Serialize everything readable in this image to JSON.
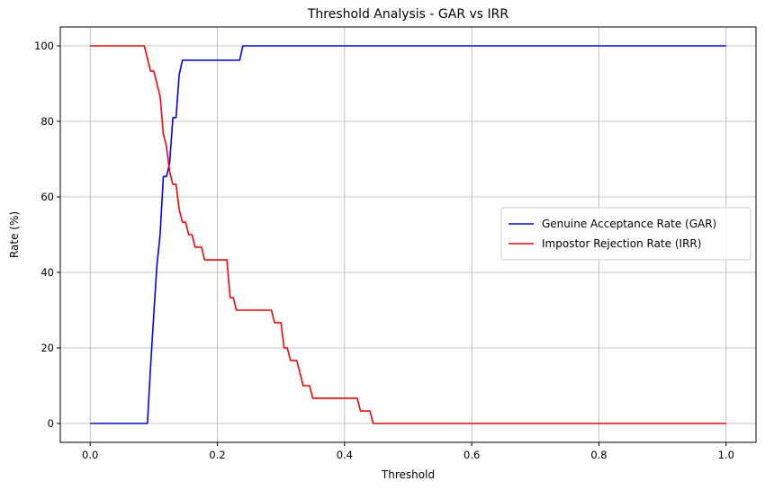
{
  "chart_data": {
    "type": "line",
    "title": "Threshold Analysis - GAR vs IRR",
    "xlabel": "Threshold",
    "ylabel": "Rate (%)",
    "xlim": [
      -0.047,
      1.047
    ],
    "ylim": [
      -5,
      105
    ],
    "xticks": [
      0.0,
      0.2,
      0.4,
      0.6,
      0.8,
      1.0
    ],
    "xtick_labels": [
      "0.0",
      "0.2",
      "0.4",
      "0.6",
      "0.8",
      "1.0"
    ],
    "yticks": [
      0,
      20,
      40,
      60,
      80,
      100
    ],
    "ytick_labels": [
      "0",
      "20",
      "40",
      "60",
      "80",
      "100"
    ],
    "grid": true,
    "legend_position": "center-right",
    "series": [
      {
        "name": "Genuine Acceptance Rate (GAR)",
        "color": "#0000ff",
        "points": [
          [
            0.0,
            0
          ],
          [
            0.09,
            0
          ],
          [
            0.095,
            15
          ],
          [
            0.1,
            29
          ],
          [
            0.105,
            42
          ],
          [
            0.11,
            50
          ],
          [
            0.115,
            65.4
          ],
          [
            0.12,
            65.4
          ],
          [
            0.125,
            69
          ],
          [
            0.13,
            81
          ],
          [
            0.135,
            81
          ],
          [
            0.14,
            92.3
          ],
          [
            0.145,
            96.2
          ],
          [
            0.235,
            96.2
          ],
          [
            0.24,
            100
          ],
          [
            1.0,
            100
          ]
        ]
      },
      {
        "name": "Impostor Rejection Rate (IRR)",
        "color": "#ff0000",
        "points": [
          [
            0.0,
            100
          ],
          [
            0.085,
            100
          ],
          [
            0.09,
            96.7
          ],
          [
            0.095,
            93.3
          ],
          [
            0.1,
            93.3
          ],
          [
            0.105,
            90
          ],
          [
            0.11,
            86.7
          ],
          [
            0.115,
            76.7
          ],
          [
            0.12,
            73.3
          ],
          [
            0.125,
            66.7
          ],
          [
            0.13,
            63.3
          ],
          [
            0.135,
            63.3
          ],
          [
            0.14,
            56.7
          ],
          [
            0.145,
            53.3
          ],
          [
            0.15,
            53.3
          ],
          [
            0.155,
            50
          ],
          [
            0.16,
            50
          ],
          [
            0.165,
            46.7
          ],
          [
            0.175,
            46.7
          ],
          [
            0.18,
            43.3
          ],
          [
            0.215,
            43.3
          ],
          [
            0.22,
            33.3
          ],
          [
            0.225,
            33.3
          ],
          [
            0.23,
            30
          ],
          [
            0.285,
            30
          ],
          [
            0.29,
            26.7
          ],
          [
            0.3,
            26.7
          ],
          [
            0.305,
            20
          ],
          [
            0.31,
            20
          ],
          [
            0.315,
            16.7
          ],
          [
            0.325,
            16.7
          ],
          [
            0.335,
            10
          ],
          [
            0.345,
            10
          ],
          [
            0.35,
            6.7
          ],
          [
            0.42,
            6.7
          ],
          [
            0.425,
            3.3
          ],
          [
            0.44,
            3.3
          ],
          [
            0.445,
            0
          ],
          [
            1.0,
            0
          ]
        ]
      }
    ]
  }
}
